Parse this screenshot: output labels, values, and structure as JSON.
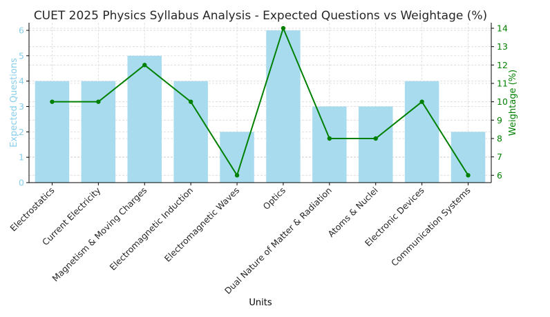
{
  "colors": {
    "bar": "#a8dbee",
    "bar_axis": "#87ceeb",
    "line": "#008000",
    "text": "#262626",
    "grid": "#d9d9d9",
    "axis": "#000000"
  },
  "chart_data": {
    "type": "bar",
    "title": "CUET 2025 Physics Syllabus Analysis - Expected Questions vs Weightage (%)",
    "xlabel": "Units",
    "ylabel": "Expected Questions",
    "y2label": "Weightage (%)",
    "categories": [
      "Electrostatics",
      "Current Electricity",
      "Magnetism & Moving Charges",
      "Electromagnetic Induction",
      "Electromagnetic Waves",
      "Optics",
      "Dual Nature of Matter & Radiation",
      "Atoms & Nuclei",
      "Electronic Devices",
      "Communication Systems"
    ],
    "ylim": [
      0,
      6.3
    ],
    "y_ticks": [
      "0",
      "1",
      "2",
      "3",
      "4",
      "5",
      "6"
    ],
    "y2lim": [
      5.6,
      14.3
    ],
    "y2_ticks": [
      "6",
      "7",
      "8",
      "9",
      "10",
      "11",
      "12",
      "13",
      "14"
    ],
    "grid": true,
    "series": [
      {
        "name": "Expected Questions",
        "type": "bar",
        "axis": "left",
        "values": [
          4,
          4,
          5,
          4,
          2,
          6,
          3,
          3,
          4,
          2
        ]
      },
      {
        "name": "Weightage (%)",
        "type": "line",
        "axis": "right",
        "values": [
          10,
          10,
          12,
          10,
          6,
          14,
          8,
          8,
          10,
          6
        ]
      }
    ]
  }
}
